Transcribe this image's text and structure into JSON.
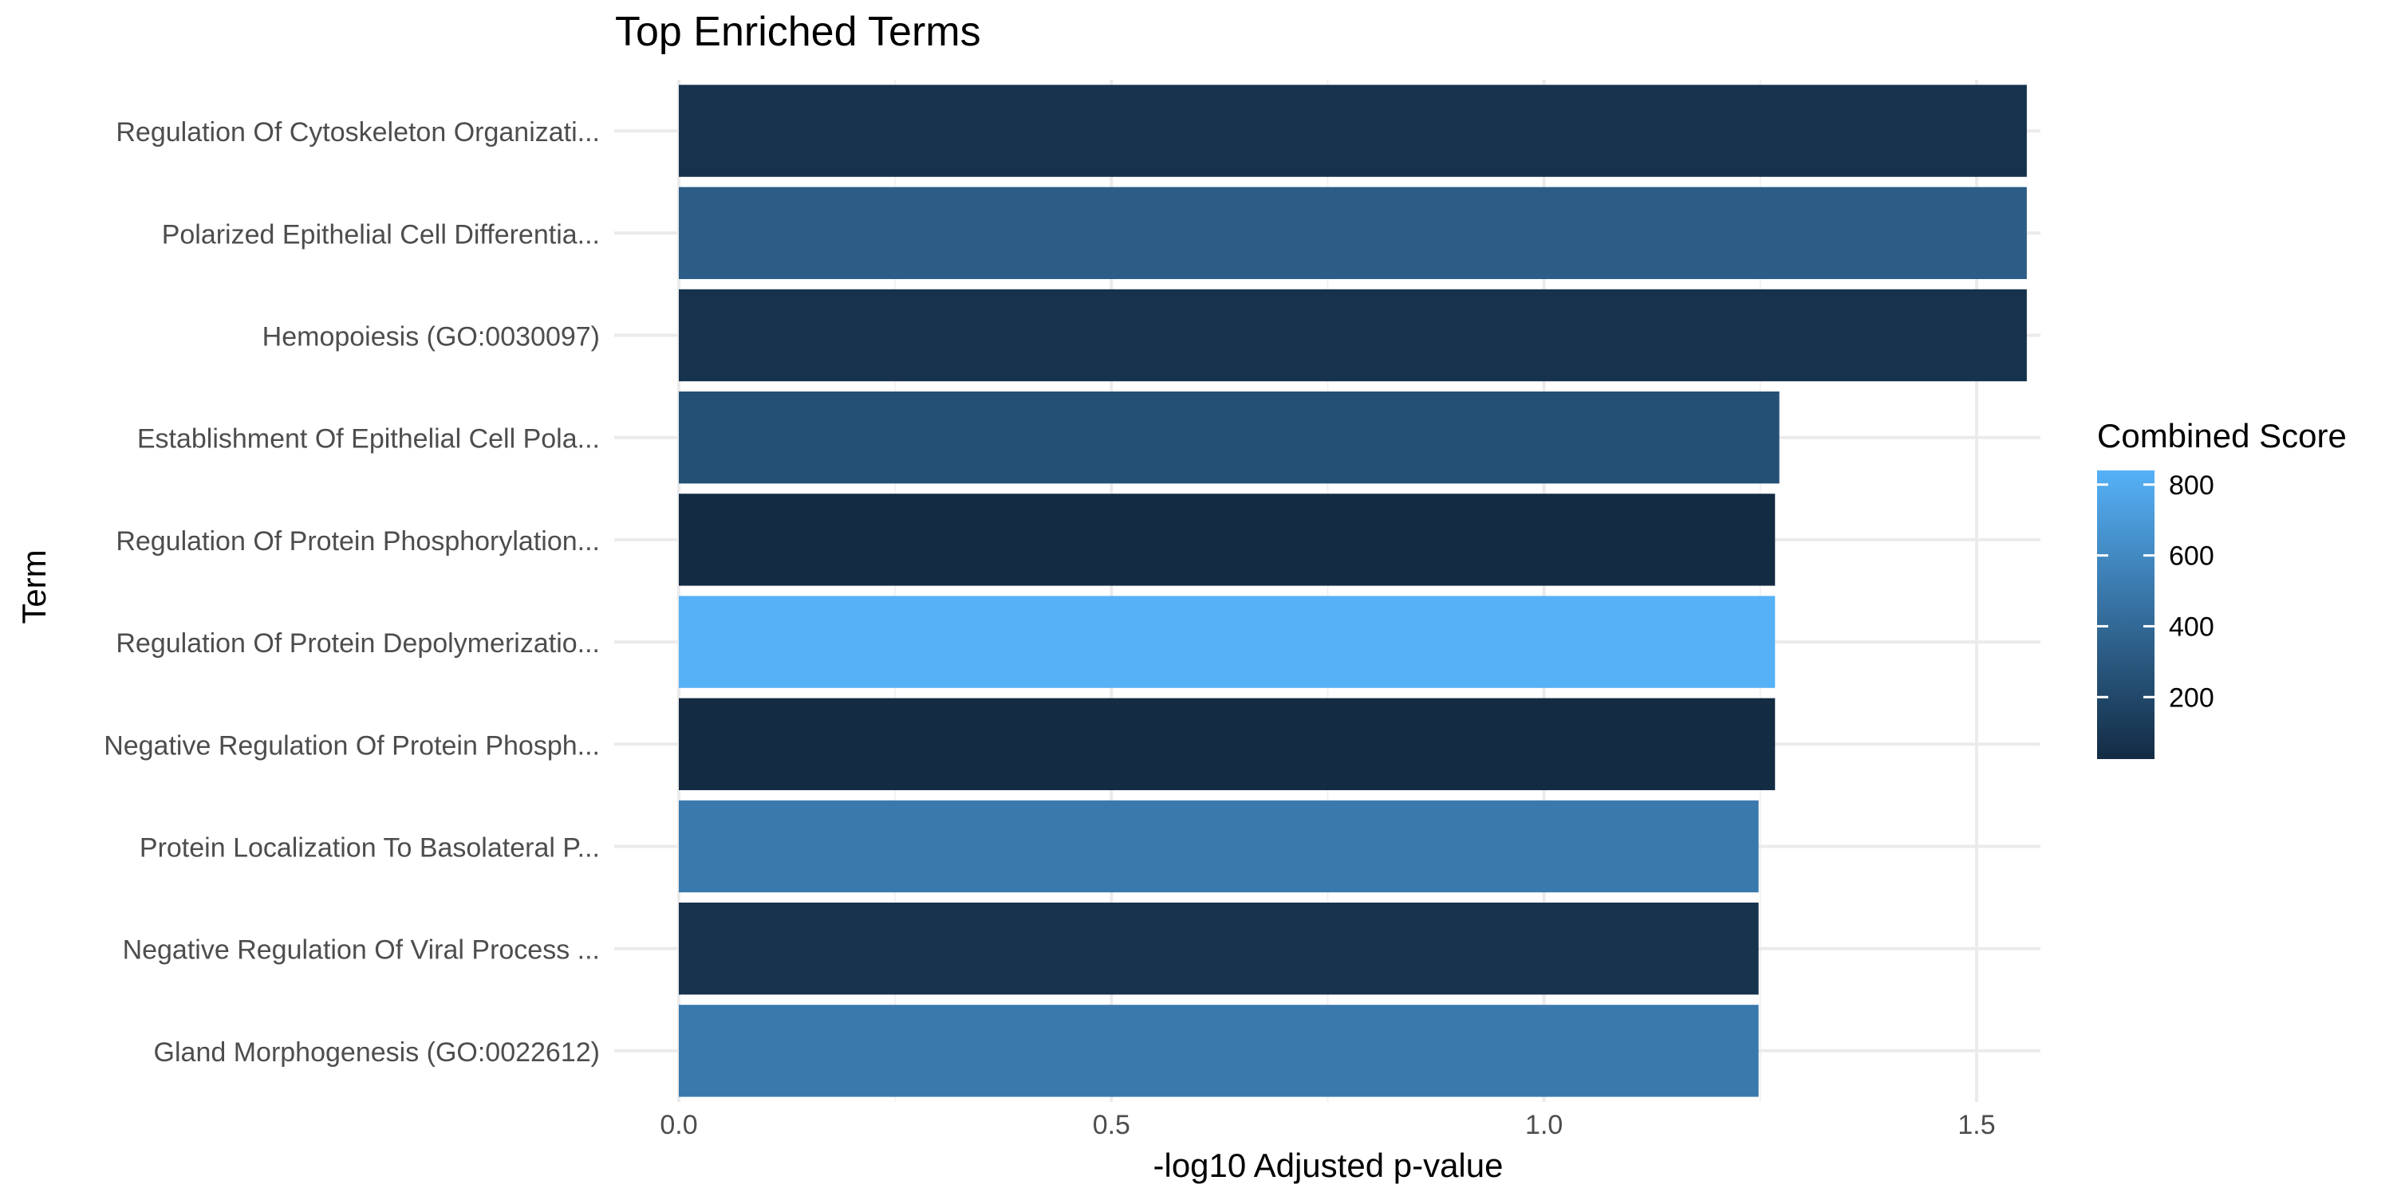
{
  "chart_data": {
    "type": "bar",
    "orientation": "horizontal",
    "title": "Top Enriched Terms",
    "xlabel": "-log10 Adjusted p-value",
    "ylabel": "Term",
    "xlim": [
      0,
      1.64
    ],
    "x_ticks": [
      0.0,
      0.5,
      1.0,
      1.5
    ],
    "x_tick_labels": [
      "0.0",
      "0.5",
      "1.0",
      "1.5"
    ],
    "grid": true,
    "legend_position": "right",
    "categories": [
      "Regulation Of Cytoskeleton Organizati...",
      "Polarized Epithelial Cell Differentia...",
      "Hemopoiesis (GO:0030097)",
      "Establishment Of Epithelial Cell Pola...",
      "Regulation Of Protein Phosphorylation...",
      "Regulation Of Protein Depolymerizatio...",
      "Negative Regulation Of Protein Phosph...",
      "Protein Localization To Basolateral P...",
      "Negative Regulation Of Viral Process ...",
      "Gland Morphogenesis (GO:0022612)"
    ],
    "values": [
      1.558,
      1.558,
      1.558,
      1.272,
      1.267,
      1.267,
      1.267,
      1.248,
      1.248,
      1.248
    ],
    "combined_scores": [
      70,
      330,
      70,
      250,
      25,
      840,
      25,
      500,
      70,
      500
    ],
    "color_scale": {
      "title": "Combined Score",
      "min": 25,
      "max": 840,
      "low_color": "#132B43",
      "high_color": "#56B1F7",
      "ticks": [
        200,
        400,
        600,
        800
      ],
      "tick_labels": [
        "200",
        "400",
        "600",
        "800"
      ]
    }
  }
}
